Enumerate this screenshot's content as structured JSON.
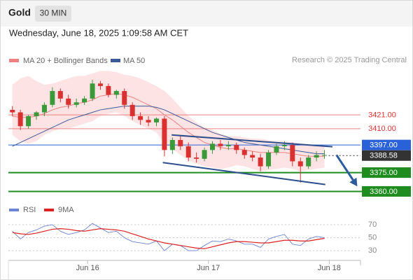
{
  "header": {
    "symbol": "Gold",
    "timeframe": "30 MIN",
    "timestamp": "Wednesday, June 18, 2025 1:09:58 AM CET"
  },
  "chart_data": [
    {
      "type": "candlestick",
      "credit": "Research © 2025 Trading Central",
      "up_color": "#3a9a3a",
      "down_color": "#d93030",
      "open": [
        3425,
        3423,
        3412,
        3420,
        3423,
        3429,
        3440,
        3434,
        3429,
        3431,
        3434,
        3446,
        3444,
        3437,
        3440,
        3429,
        3420,
        3417,
        3415,
        3418,
        3393,
        3401,
        3396,
        3387,
        3386,
        3393,
        3398,
        3396,
        3397,
        3393,
        3389,
        3387,
        3380,
        3391,
        3396,
        3397,
        3384,
        3380,
        3387,
        3389
      ],
      "high": [
        3428,
        3425,
        3421,
        3424,
        3431,
        3443,
        3442,
        3437,
        3434,
        3436,
        3449,
        3448,
        3446,
        3441,
        3442,
        3431,
        3423,
        3420,
        3419,
        3420,
        3403,
        3404,
        3399,
        3391,
        3395,
        3400,
        3401,
        3400,
        3399,
        3395,
        3392,
        3390,
        3393,
        3398,
        3400,
        3399,
        3387,
        3389,
        3392,
        3393
      ],
      "low": [
        3420,
        3409,
        3410,
        3417,
        3420,
        3427,
        3431,
        3426,
        3427,
        3429,
        3432,
        3441,
        3435,
        3434,
        3426,
        3417,
        3413,
        3412,
        3412,
        3388,
        3390,
        3393,
        3384,
        3383,
        3384,
        3390,
        3393,
        3393,
        3390,
        3386,
        3384,
        3376,
        3378,
        3389,
        3393,
        3380,
        3367,
        3378,
        3384,
        3386
      ],
      "close": [
        3423,
        3412,
        3420,
        3423,
        3429,
        3440,
        3434,
        3429,
        3431,
        3434,
        3446,
        3444,
        3437,
        3440,
        3429,
        3420,
        3417,
        3415,
        3418,
        3393,
        3401,
        3396,
        3387,
        3386,
        3393,
        3398,
        3396,
        3397,
        3393,
        3389,
        3387,
        3380,
        3391,
        3396,
        3397,
        3384,
        3380,
        3387,
        3389,
        3389
      ],
      "overlays": [
        {
          "name": "MA 20 + Bollinger Bands",
          "color": "#f08080",
          "band_color": "#fcd9d9",
          "values": [
            3420,
            3419,
            3419,
            3420,
            3422,
            3425,
            3427,
            3428,
            3430,
            3431,
            3433,
            3436,
            3437,
            3438,
            3437,
            3435,
            3432,
            3429,
            3426,
            3421,
            3417,
            3412,
            3407,
            3403,
            3399,
            3397,
            3395,
            3394,
            3394,
            3393,
            3392,
            3391,
            3391,
            3391,
            3391,
            3390,
            3389,
            3388,
            3388,
            3388
          ],
          "upper": [
            3445,
            3450,
            3452,
            3448,
            3445,
            3446,
            3448,
            3450,
            3452,
            3452,
            3454,
            3456,
            3456,
            3455,
            3453,
            3452,
            3450,
            3447,
            3444,
            3440,
            3434,
            3427,
            3420,
            3415,
            3411,
            3409,
            3406,
            3404,
            3404,
            3403,
            3402,
            3402,
            3401,
            3400,
            3400,
            3399,
            3398,
            3397,
            3397,
            3396
          ],
          "lower": [
            3405,
            3400,
            3398,
            3400,
            3405,
            3408,
            3410,
            3410,
            3412,
            3414,
            3416,
            3420,
            3422,
            3423,
            3420,
            3416,
            3413,
            3410,
            3407,
            3398,
            3394,
            3389,
            3385,
            3382,
            3380,
            3379,
            3378,
            3379,
            3381,
            3380,
            3378,
            3376,
            3377,
            3378,
            3379,
            3378,
            3376,
            3377,
            3378,
            3379
          ]
        },
        {
          "name": "MA 50",
          "color": "#3a5a9a",
          "values": [
            3396,
            3399,
            3402,
            3405,
            3408,
            3411,
            3414,
            3417,
            3419,
            3421,
            3423,
            3425,
            3426,
            3427,
            3428,
            3428,
            3428,
            3428,
            3427,
            3425,
            3422,
            3419,
            3416,
            3413,
            3410,
            3407,
            3405,
            3403,
            3401,
            3399,
            3398,
            3397,
            3396,
            3395,
            3394,
            3393,
            3392,
            3391,
            3390,
            3390
          ]
        }
      ],
      "levels": [
        {
          "value": 3421,
          "label": "3421.00",
          "color": "#f08080",
          "width": 1,
          "boxed": false,
          "dash": false
        },
        {
          "value": 3410,
          "label": "3410.00",
          "color": "#f08080",
          "width": 1,
          "boxed": false,
          "dash": false
        },
        {
          "value": 3397,
          "label": "3397.00",
          "color": "#2962d8",
          "width": 1,
          "boxed": true,
          "dash": false
        },
        {
          "value": 3388.58,
          "label": "3388.58",
          "color": "#333333",
          "width": 1,
          "boxed": true,
          "dash": true
        },
        {
          "value": 3375,
          "label": "3375.00",
          "color": "#1e8c1e",
          "width": 2,
          "boxed": true,
          "dash": false
        },
        {
          "value": 3360,
          "label": "3360.00",
          "color": "#1e8c1e",
          "width": 2,
          "boxed": true,
          "dash": false
        }
      ],
      "trendlines": [
        {
          "x": [
            20.4,
            40.5
          ],
          "y": [
            3405,
            3395.6
          ],
          "color": "#2d4f8e"
        },
        {
          "x": [
            19.3,
            39.6
          ],
          "y": [
            3383,
            3365.5
          ],
          "color": "#2d4f8e"
        }
      ],
      "arrow": {
        "x": [
          41,
          43.6
        ],
        "y": [
          3389,
          3364
        ],
        "color": "#2d5b9e"
      },
      "xlim": [
        0,
        44
      ],
      "ylim": [
        3353,
        3459
      ]
    },
    {
      "type": "line",
      "series": [
        {
          "name": "RSI",
          "color": "#6b82d6",
          "values": [
            60,
            48,
            58,
            62,
            68,
            70,
            60,
            55,
            58,
            62,
            72,
            65,
            58,
            60,
            50,
            44,
            42,
            40,
            45,
            30,
            40,
            38,
            30,
            30,
            38,
            45,
            44,
            48,
            45,
            40,
            40,
            35,
            48,
            52,
            55,
            40,
            38,
            48,
            52,
            50
          ]
        },
        {
          "name": "9MA",
          "color": "#e02020",
          "values": [
            58,
            56,
            55,
            57,
            60,
            63,
            64,
            63,
            61,
            60,
            62,
            64,
            63,
            62,
            60,
            56,
            52,
            48,
            45,
            42,
            40,
            38,
            36,
            34,
            33,
            36,
            39,
            42,
            44,
            44,
            43,
            42,
            42,
            44,
            46,
            46,
            45,
            45,
            47,
            49
          ]
        }
      ],
      "xlim": [
        0,
        44
      ],
      "ylim": [
        15,
        76
      ],
      "yticks": [
        70,
        50,
        30
      ],
      "grid": true,
      "xticks": [
        {
          "value": 9.9,
          "label": "Jun 16"
        },
        {
          "value": 25,
          "label": "Jun 17"
        },
        {
          "value": 40.1,
          "label": "Jun 18"
        }
      ]
    }
  ]
}
